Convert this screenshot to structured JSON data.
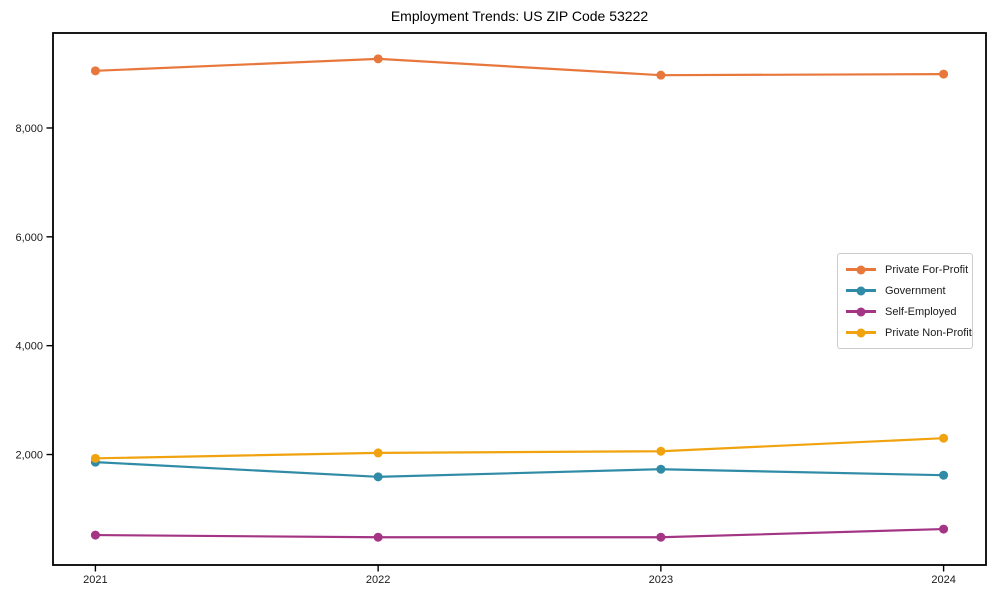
{
  "chart_data": {
    "type": "line",
    "title": "Employment Trends: US ZIP Code 53222",
    "x": [
      2021,
      2022,
      2023,
      2024
    ],
    "x_tick_labels": [
      "2021",
      "2022",
      "2023",
      "2024"
    ],
    "y_ticks": [
      {
        "value": 2000,
        "label": "2,000"
      },
      {
        "value": 4000,
        "label": "4,000"
      },
      {
        "value": 6000,
        "label": "6,000"
      },
      {
        "value": 8000,
        "label": "8,000"
      }
    ],
    "xlim": [
      2020.85,
      2024.15
    ],
    "ylim": [
      -30,
      9745
    ],
    "grid": false,
    "legend_position": "center-right",
    "axis_color": "#000000",
    "tick_label_color": "#1a1a1a",
    "series": [
      {
        "name": "Private For-Profit",
        "color": "#e8773b",
        "values": [
          9050,
          9270,
          8970,
          8990
        ]
      },
      {
        "name": "Government",
        "color": "#2f8ba6",
        "values": [
          1860,
          1590,
          1730,
          1620
        ]
      },
      {
        "name": "Self-Employed",
        "color": "#a33584",
        "values": [
          520,
          480,
          480,
          630
        ]
      },
      {
        "name": "Private Non-Profit",
        "color": "#f0a30f",
        "values": [
          1930,
          2030,
          2060,
          2300
        ]
      }
    ]
  }
}
